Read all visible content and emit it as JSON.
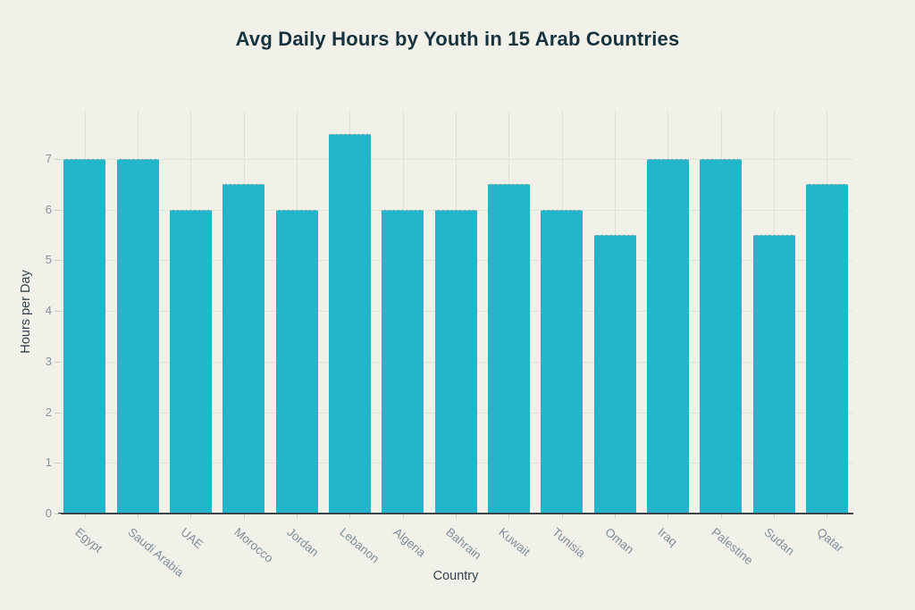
{
  "chart_data": {
    "type": "bar",
    "title": "Avg Daily Hours by Youth in 15 Arab Countries",
    "xlabel": "Country",
    "ylabel": "Hours per Day",
    "categories": [
      "Egypt",
      "Saudi Arabia",
      "UAE",
      "Morocco",
      "Jordan",
      "Lebanon",
      "Algeria",
      "Bahrain",
      "Kuwait",
      "Tunisia",
      "Oman",
      "Iraq",
      "Palestine",
      "Sudan",
      "Qatar"
    ],
    "values": [
      7,
      7,
      6,
      6.5,
      6,
      7.5,
      6,
      6,
      6.5,
      6,
      5.5,
      7,
      7,
      5.5,
      6.5
    ],
    "yticks": [
      0,
      1,
      2,
      3,
      4,
      5,
      6,
      7
    ],
    "ylim": [
      0,
      7.97
    ],
    "grid": true,
    "legend": "none",
    "colors": {
      "background": "#f1f1ea",
      "bar": "#23b5c9",
      "gridline": "#dfdfd7",
      "axis_line": "#3b4449",
      "tick_label": "#84909a",
      "axis_title": "#33424c",
      "title": "#17333e"
    }
  }
}
